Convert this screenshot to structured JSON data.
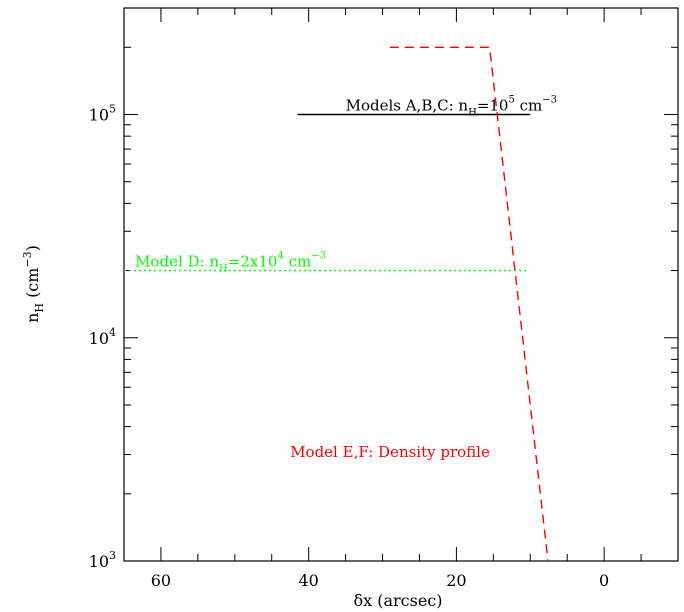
{
  "chart_data": {
    "type": "line",
    "xlabel": "δx (arcsec)",
    "ylabel": "n_H (cm^-3)",
    "xlim": [
      65,
      -10
    ],
    "ylim": [
      1000,
      300000
    ],
    "yscale": "log",
    "xticks": [
      60,
      40,
      20,
      0
    ],
    "xtick_labels": [
      "60",
      "40",
      "20",
      "0"
    ],
    "yticks": [
      1000,
      10000,
      100000
    ],
    "ytick_labels": [
      {
        "base": "10",
        "exp": "3"
      },
      {
        "base": "10",
        "exp": "4"
      },
      {
        "base": "10",
        "exp": "5"
      }
    ],
    "grid": false,
    "legend": "none",
    "series": [
      {
        "label": "Models A,B,C: n_H=10^5 cm^-3",
        "color": "#000000",
        "style": "solid",
        "x": [
          41.5,
          10
        ],
        "y": [
          100000,
          100000
        ]
      },
      {
        "label": "Model D: n_H=2x10^4 cm^-3",
        "color": "#00ff00",
        "style": "dotted",
        "x": [
          65,
          10.5
        ],
        "y": [
          20000,
          20000
        ]
      },
      {
        "label": "Model E,F: Density profile",
        "color": "#ff0000",
        "style": "dashed",
        "x": [
          29,
          15.5,
          7.6
        ],
        "y": [
          200000,
          200000,
          1000
        ]
      }
    ],
    "annotations": [
      {
        "parts": [
          {
            "t": "Models A,B,C: n"
          },
          {
            "t": "H",
            "sub": true
          },
          {
            "t": "=10"
          },
          {
            "t": "5",
            "sup": true
          },
          {
            "t": " cm"
          },
          {
            "t": "−3",
            "sup": true
          }
        ],
        "color": "#000000",
        "x": 35,
        "y": 100000
      },
      {
        "parts": [
          {
            "t": "Model D: n"
          },
          {
            "t": "H",
            "sub": true
          },
          {
            "t": "=2x10"
          },
          {
            "t": "4",
            "sup": true
          },
          {
            "t": " cm"
          },
          {
            "t": "−3",
            "sup": true
          }
        ],
        "color": "#00ff00",
        "x": 63.5,
        "y": 20000
      },
      {
        "parts": [
          {
            "t": "Model E,F: Density profile"
          }
        ],
        "color": "#ff0000",
        "x": 42.5,
        "y": 2800
      }
    ]
  }
}
